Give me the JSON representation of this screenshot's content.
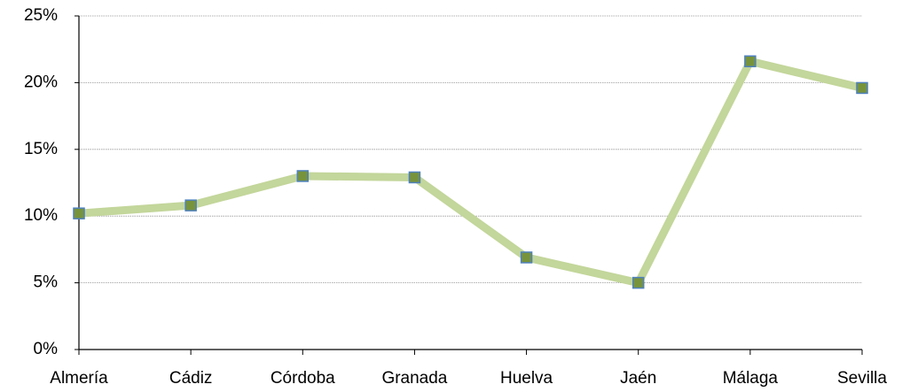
{
  "chart_data": {
    "type": "line",
    "categories": [
      "Almería",
      "Cádiz",
      "Córdoba",
      "Granada",
      "Huelva",
      "Jaén",
      "Málaga",
      "Sevilla"
    ],
    "series": [
      {
        "color": "#c3d69b",
        "marker_color": "#77933c",
        "marker_edge": "#4f81bd",
        "values": [
          10.2,
          10.8,
          13.0,
          12.9,
          6.9,
          5.0,
          21.6,
          19.6
        ]
      }
    ],
    "ylim": [
      0,
      25
    ],
    "yticks": [
      {
        "value": 0,
        "label": "0%"
      },
      {
        "value": 5,
        "label": "5%"
      },
      {
        "value": 10,
        "label": "10%"
      },
      {
        "value": 15,
        "label": "15%"
      },
      {
        "value": 20,
        "label": "20%"
      },
      {
        "value": 25,
        "label": "25%"
      }
    ],
    "grid": true
  }
}
